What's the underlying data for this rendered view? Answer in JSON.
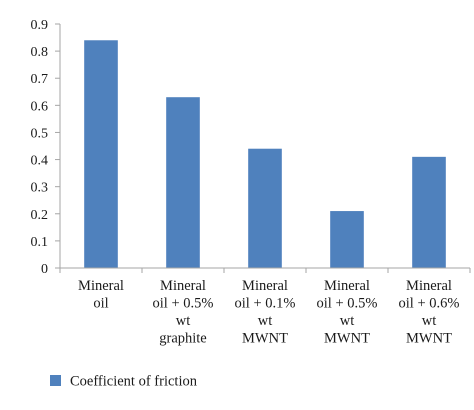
{
  "chart_data": {
    "type": "bar",
    "categories": [
      [
        "Mineral",
        "oil"
      ],
      [
        "Mineral",
        "oil + 0.5%",
        "wt",
        "graphite"
      ],
      [
        "Mineral",
        "oil + 0.1%",
        "wt",
        "MWNT"
      ],
      [
        "Mineral",
        "oil + 0.5%",
        "wt",
        "MWNT"
      ],
      [
        "Mineral",
        "oil + 0.6%",
        "wt",
        "MWNT"
      ]
    ],
    "series": [
      {
        "name": "Coefficient of friction",
        "values": [
          0.84,
          0.63,
          0.44,
          0.21,
          0.41
        ],
        "color": "#4F81BD"
      }
    ],
    "ylim": [
      0,
      0.9
    ],
    "yticks": [
      "0",
      "0.1",
      "0.2",
      "0.3",
      "0.4",
      "0.5",
      "0.6",
      "0.7",
      "0.8",
      "0.9"
    ],
    "grid": false,
    "legend": "bottom-left",
    "axis_color": "#a6a6a6"
  }
}
